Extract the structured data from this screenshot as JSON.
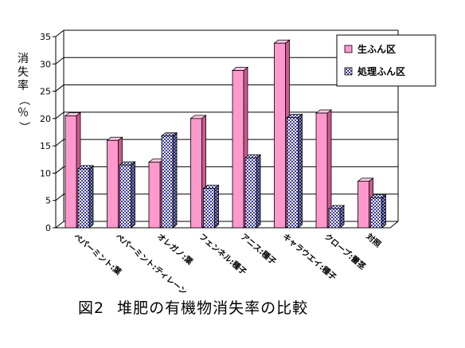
{
  "chart_data": {
    "type": "bar",
    "title": "",
    "ylabel": "消失率（％）",
    "xlabel": "",
    "ylim": [
      0,
      35
    ],
    "yticks": [
      0,
      5,
      10,
      15,
      20,
      25,
      30,
      35
    ],
    "grid": true,
    "legend_position": "top-right",
    "categories": [
      "ペパーミント:葉",
      "ペパーミント:ティレーン",
      "オレガノ:葉",
      "フェンネル:種子",
      "アニス:種子",
      "キャラウエイ:種子",
      "クローブ:蕾茎",
      "対照"
    ],
    "series": [
      {
        "name": "生ふん区",
        "color": "#ff99cc",
        "values": [
          20.5,
          16,
          12,
          20,
          28.8,
          33.8,
          21,
          8.5
        ]
      },
      {
        "name": "処理ふん区",
        "color": "#9999ff",
        "values": [
          10.8,
          11.5,
          16.8,
          7.2,
          12.8,
          20.2,
          3.5,
          5.5
        ]
      }
    ]
  },
  "caption": {
    "figure_label": "図2",
    "text": "堆肥の有機物消失率の比較"
  }
}
